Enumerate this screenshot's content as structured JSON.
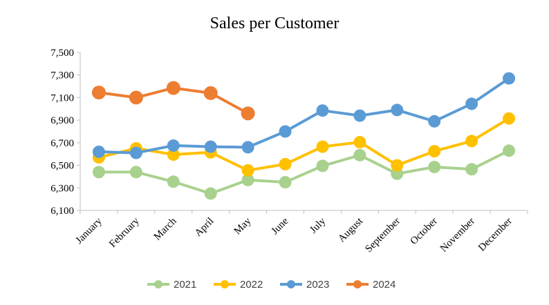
{
  "chart_data": {
    "type": "line",
    "title": "Sales per Customer",
    "xlabel": "",
    "ylabel": "",
    "categories": [
      "January",
      "February",
      "March",
      "April",
      "May",
      "June",
      "July",
      "August",
      "September",
      "October",
      "November",
      "December"
    ],
    "ylim": [
      6100,
      7500
    ],
    "yticks": [
      6100,
      6300,
      6500,
      6700,
      6900,
      7100,
      7300,
      7500
    ],
    "ytick_labels": [
      "6,100",
      "6,300",
      "6,500",
      "6,700",
      "6,900",
      "7,100",
      "7,300",
      "7,500"
    ],
    "grid": false,
    "legend_position": "bottom",
    "series": [
      {
        "name": "2021",
        "color": "#A9D18E",
        "values": [
          6440,
          6440,
          6355,
          6250,
          6370,
          6350,
          6495,
          6590,
          6425,
          6485,
          6465,
          6630
        ]
      },
      {
        "name": "2022",
        "color": "#FFC000",
        "values": [
          6570,
          6650,
          6595,
          6615,
          6455,
          6510,
          6665,
          6705,
          6500,
          6625,
          6715,
          6915
        ]
      },
      {
        "name": "2023",
        "color": "#5B9BD5",
        "values": [
          6620,
          6610,
          6675,
          6665,
          6660,
          6800,
          6985,
          6940,
          6990,
          6890,
          7045,
          7270
        ]
      },
      {
        "name": "2024",
        "color": "#ED7D31",
        "values": [
          7145,
          7100,
          7185,
          7140,
          6960,
          null,
          null,
          null,
          null,
          null,
          null,
          null
        ]
      }
    ]
  }
}
